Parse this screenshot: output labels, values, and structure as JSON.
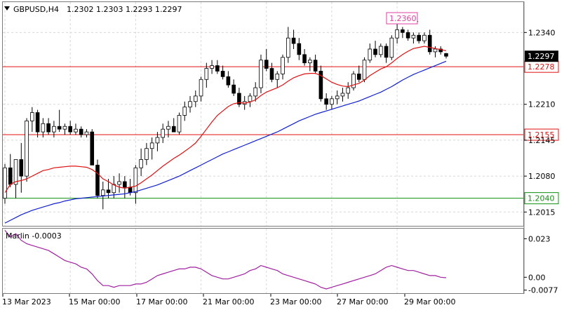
{
  "header": {
    "symbol": "GBPUSD,H4",
    "ohlc": "1.2302 1.2303 1.2293 1.2297",
    "menu_icon": "triangle-down-icon"
  },
  "colors": {
    "bull": "#ffffff",
    "bear": "#000000",
    "candle_outline": "#000000",
    "ma_fast": "#e01010",
    "ma_slow": "#1020d0",
    "level_red": "#e01010",
    "level_green": "#109010",
    "oscillator": "#a020a0",
    "grid": "#d8d8d8",
    "callout": "#e040a0"
  },
  "chart_data": [
    {
      "type": "candlestick",
      "title": "GBPUSD,H4",
      "y_ticks": [
        "1.2340",
        "1.2210",
        "1.2145",
        "1.2080",
        "1.2015"
      ],
      "x_ticks": [
        "13 Mar 2023",
        "15 Mar 00:00",
        "17 Mar 00:00",
        "21 Mar 00:00",
        "23 Mar 00:00",
        "27 Mar 00:00",
        "29 Mar 00:00"
      ],
      "ylim": [
        1.199,
        1.2395
      ],
      "grid": true,
      "levels": [
        {
          "label": "1.2278",
          "value": 1.2278,
          "color": "red"
        },
        {
          "label": "1.2155",
          "value": 1.2155,
          "color": "red"
        },
        {
          "label": "1.2040",
          "value": 1.204,
          "color": "green"
        }
      ],
      "current_price": {
        "label": "1.2297",
        "value": 1.2297
      },
      "callout": {
        "label": "1.2360",
        "value": 1.236
      },
      "candles": [
        [
          1.204,
          1.2102,
          1.203,
          1.2095
        ],
        [
          1.2095,
          1.212,
          1.206,
          1.2065
        ],
        [
          1.2065,
          1.211,
          1.204,
          1.211
        ],
        [
          1.211,
          1.214,
          1.205,
          1.208
        ],
        [
          1.208,
          1.2185,
          1.207,
          1.218
        ],
        [
          1.218,
          1.2205,
          1.216,
          1.2195
        ],
        [
          1.2195,
          1.22,
          1.215,
          1.216
        ],
        [
          1.216,
          1.2185,
          1.215,
          1.2175
        ],
        [
          1.2175,
          1.2185,
          1.2155,
          1.216
        ],
        [
          1.216,
          1.218,
          1.215,
          1.217
        ],
        [
          1.217,
          1.22,
          1.216,
          1.2165
        ],
        [
          1.2165,
          1.2175,
          1.2155,
          1.217
        ],
        [
          1.217,
          1.218,
          1.2155,
          1.216
        ],
        [
          1.216,
          1.2175,
          1.2155,
          1.2165
        ],
        [
          1.2165,
          1.217,
          1.215,
          1.2155
        ],
        [
          1.2155,
          1.2165,
          1.215,
          1.216
        ],
        [
          1.216,
          1.2165,
          1.21,
          1.21
        ],
        [
          1.21,
          1.211,
          1.204,
          1.2045
        ],
        [
          1.2045,
          1.207,
          1.202,
          1.2055
        ],
        [
          1.2055,
          1.2075,
          1.204,
          1.205
        ],
        [
          1.205,
          1.208,
          1.204,
          1.2065
        ],
        [
          1.2065,
          1.2085,
          1.205,
          1.207
        ],
        [
          1.207,
          1.208,
          1.204,
          1.206
        ],
        [
          1.206,
          1.2075,
          1.2045,
          1.205
        ],
        [
          1.205,
          1.21,
          1.203,
          1.2095
        ],
        [
          1.2095,
          1.213,
          1.208,
          1.211
        ],
        [
          1.211,
          1.214,
          1.21,
          1.213
        ],
        [
          1.213,
          1.215,
          1.211,
          1.214
        ],
        [
          1.214,
          1.216,
          1.2125,
          1.215
        ],
        [
          1.215,
          1.2175,
          1.214,
          1.2165
        ],
        [
          1.2165,
          1.218,
          1.215,
          1.217
        ],
        [
          1.217,
          1.2185,
          1.216,
          1.216
        ],
        [
          1.216,
          1.2195,
          1.2155,
          1.219
        ],
        [
          1.219,
          1.2215,
          1.218,
          1.2205
        ],
        [
          1.2205,
          1.2225,
          1.2195,
          1.2215
        ],
        [
          1.2215,
          1.2235,
          1.2205,
          1.2225
        ],
        [
          1.2225,
          1.226,
          1.2215,
          1.2255
        ],
        [
          1.2255,
          1.2285,
          1.224,
          1.2275
        ],
        [
          1.2275,
          1.229,
          1.2265,
          1.228
        ],
        [
          1.228,
          1.229,
          1.2265,
          1.227
        ],
        [
          1.227,
          1.228,
          1.2255,
          1.226
        ],
        [
          1.226,
          1.227,
          1.224,
          1.2245
        ],
        [
          1.2245,
          1.2255,
          1.2225,
          1.223
        ],
        [
          1.223,
          1.224,
          1.2205,
          1.221
        ],
        [
          1.221,
          1.2225,
          1.22,
          1.2215
        ],
        [
          1.2215,
          1.223,
          1.2205,
          1.2225
        ],
        [
          1.2225,
          1.225,
          1.2215,
          1.224
        ],
        [
          1.224,
          1.23,
          1.223,
          1.229
        ],
        [
          1.229,
          1.231,
          1.227,
          1.2275
        ],
        [
          1.2275,
          1.2285,
          1.225,
          1.2255
        ],
        [
          1.2255,
          1.227,
          1.224,
          1.2265
        ],
        [
          1.2265,
          1.23,
          1.2255,
          1.2295
        ],
        [
          1.2295,
          1.235,
          1.2285,
          1.233
        ],
        [
          1.233,
          1.2345,
          1.231,
          1.232
        ],
        [
          1.232,
          1.233,
          1.229,
          1.23
        ],
        [
          1.23,
          1.231,
          1.228,
          1.2285
        ],
        [
          1.2285,
          1.2295,
          1.227,
          1.229
        ],
        [
          1.229,
          1.23,
          1.2265,
          1.227
        ],
        [
          1.227,
          1.228,
          1.2215,
          1.222
        ],
        [
          1.222,
          1.223,
          1.22,
          1.221
        ],
        [
          1.221,
          1.2225,
          1.22,
          1.222
        ],
        [
          1.222,
          1.2235,
          1.221,
          1.2225
        ],
        [
          1.2225,
          1.224,
          1.2215,
          1.223
        ],
        [
          1.223,
          1.225,
          1.222,
          1.224
        ],
        [
          1.224,
          1.227,
          1.2235,
          1.2265
        ],
        [
          1.2265,
          1.228,
          1.225,
          1.2255
        ],
        [
          1.2255,
          1.2295,
          1.225,
          1.229
        ],
        [
          1.229,
          1.232,
          1.2285,
          1.231
        ],
        [
          1.231,
          1.2325,
          1.2295,
          1.23
        ],
        [
          1.23,
          1.232,
          1.2295,
          1.2315
        ],
        [
          1.2315,
          1.232,
          1.2285,
          1.2295
        ],
        [
          1.2295,
          1.2335,
          1.229,
          1.233
        ],
        [
          1.233,
          1.236,
          1.232,
          1.2345
        ],
        [
          1.2345,
          1.235,
          1.233,
          1.234
        ],
        [
          1.234,
          1.2345,
          1.2325,
          1.233
        ],
        [
          1.233,
          1.234,
          1.232,
          1.2335
        ],
        [
          1.2335,
          1.234,
          1.232,
          1.2325
        ],
        [
          1.2325,
          1.234,
          1.232,
          1.2335
        ],
        [
          1.2335,
          1.2345,
          1.23,
          1.2305
        ],
        [
          1.2305,
          1.2315,
          1.2295,
          1.231
        ],
        [
          1.231,
          1.2315,
          1.23,
          1.2305
        ],
        [
          1.2302,
          1.2303,
          1.2293,
          1.2297
        ]
      ],
      "ma_fast": [
        1.205,
        1.2065,
        1.207,
        1.2072,
        1.2075,
        1.208,
        1.2085,
        1.209,
        1.2092,
        1.2095,
        1.2096,
        1.2097,
        1.2098,
        1.2098,
        1.2097,
        1.2096,
        1.2092,
        1.2085,
        1.2075,
        1.207,
        1.2064,
        1.206,
        1.2058,
        1.206,
        1.2062,
        1.2068,
        1.2075,
        1.2082,
        1.209,
        1.2098,
        1.2105,
        1.2112,
        1.2118,
        1.2125,
        1.2132,
        1.214,
        1.2152,
        1.2165,
        1.2178,
        1.219,
        1.2198,
        1.2206,
        1.2211,
        1.2213,
        1.2212,
        1.2214,
        1.2218,
        1.2226,
        1.2232,
        1.2236,
        1.224,
        1.2245,
        1.2252,
        1.2258,
        1.2262,
        1.2265,
        1.2266,
        1.2266,
        1.2262,
        1.2256,
        1.225,
        1.2246,
        1.2243,
        1.2242,
        1.2245,
        1.2248,
        1.2254,
        1.2262,
        1.2268,
        1.2274,
        1.2278,
        1.2285,
        1.2293,
        1.23,
        1.2306,
        1.2311,
        1.2313,
        1.2315,
        1.2313,
        1.2311,
        1.2309,
        1.2307
      ],
      "ma_slow": [
        1.1995,
        1.2,
        1.2005,
        1.201,
        1.2014,
        1.2018,
        1.2021,
        1.2024,
        1.2027,
        1.203,
        1.2032,
        1.2035,
        1.2037,
        1.2039,
        1.204,
        1.2041,
        1.2042,
        1.2043,
        1.2044,
        1.2045,
        1.2046,
        1.2047,
        1.2048,
        1.205,
        1.2052,
        1.2055,
        1.2058,
        1.2061,
        1.2064,
        1.2068,
        1.2072,
        1.2076,
        1.208,
        1.2085,
        1.209,
        1.2095,
        1.21,
        1.2105,
        1.211,
        1.2115,
        1.212,
        1.2124,
        1.2128,
        1.2132,
        1.2136,
        1.214,
        1.2144,
        1.2148,
        1.2152,
        1.2156,
        1.216,
        1.2165,
        1.217,
        1.2175,
        1.218,
        1.2184,
        1.2188,
        1.2192,
        1.2195,
        1.2198,
        1.2201,
        1.2204,
        1.2207,
        1.221,
        1.2213,
        1.2216,
        1.222,
        1.2224,
        1.2228,
        1.2232,
        1.2237,
        1.2242,
        1.2248,
        1.2254,
        1.2259,
        1.2264,
        1.2268,
        1.2272,
        1.2276,
        1.228,
        1.2284,
        1.2288
      ]
    },
    {
      "type": "line",
      "title": "Marlin -0.0003",
      "y_ticks": [
        "0.023",
        "0.00",
        "-0.0077"
      ],
      "ylim": [
        -0.0095,
        0.029
      ],
      "series": [
        {
          "name": "Marlin -0.0003",
          "values": [
            0.028,
            0.024,
            0.026,
            0.022,
            0.02,
            0.019,
            0.018,
            0.017,
            0.016,
            0.014,
            0.012,
            0.01,
            0.009,
            0.008,
            0.006,
            0.005,
            0.002,
            -0.002,
            -0.005,
            -0.005,
            -0.006,
            -0.005,
            -0.005,
            -0.005,
            -0.004,
            -0.004,
            -0.003,
            -0.001,
            0.001,
            0.002,
            0.003,
            0.004,
            0.005,
            0.005,
            0.006,
            0.006,
            0.005,
            0.003,
            0.001,
            0.0,
            -0.001,
            -0.001,
            0.0,
            0.001,
            0.002,
            0.004,
            0.005,
            0.007,
            0.006,
            0.005,
            0.004,
            0.002,
            0.001,
            0.0,
            -0.001,
            -0.002,
            -0.003,
            -0.004,
            -0.006,
            -0.007,
            -0.006,
            -0.005,
            -0.004,
            -0.003,
            -0.002,
            -0.001,
            0.0,
            0.001,
            0.002,
            0.004,
            0.006,
            0.007,
            0.006,
            0.005,
            0.004,
            0.004,
            0.003,
            0.002,
            0.001,
            0.001,
            0.0,
            -0.0003
          ]
        }
      ]
    }
  ]
}
